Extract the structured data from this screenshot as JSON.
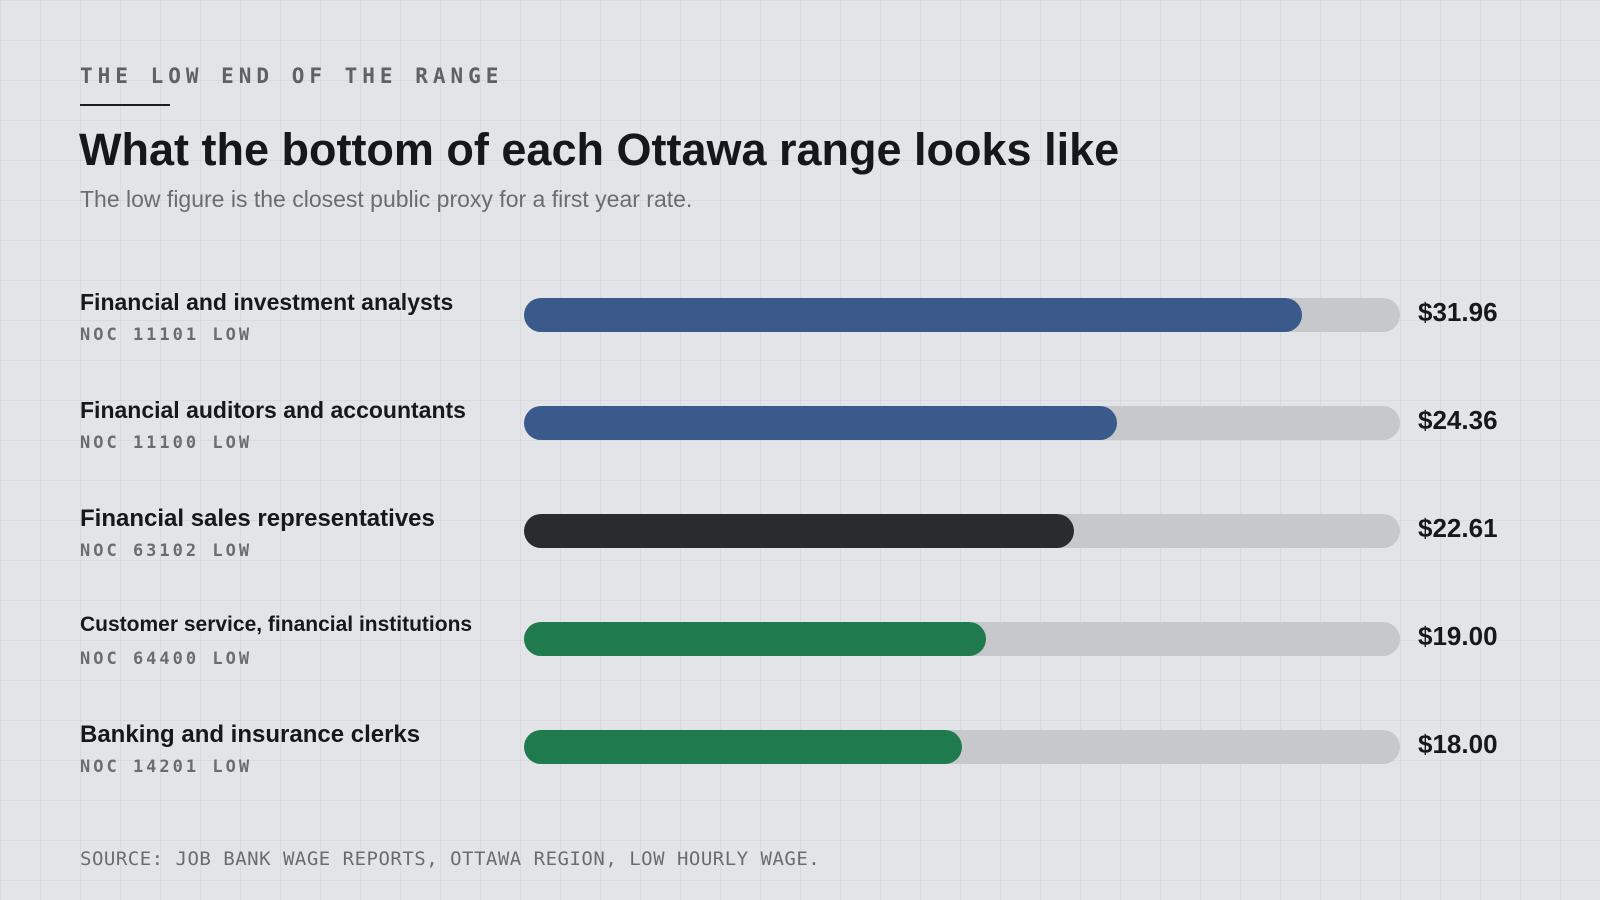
{
  "header": {
    "eyebrow": "THE LOW END OF THE RANGE",
    "title": "What the bottom of each Ottawa range looks like",
    "subtitle": "The low figure is the closest public proxy for a first year rate."
  },
  "chart_data": {
    "type": "bar",
    "orientation": "horizontal",
    "title": "What the bottom of each Ottawa range looks like",
    "subtitle": "The low figure is the closest public proxy for a first year rate.",
    "categories": [
      "Financial and investment analysts",
      "Financial auditors and accountants",
      "Financial sales representatives",
      "Customer service, financial institutions",
      "Banking and insurance clerks"
    ],
    "codes": [
      "NOC 11101 LOW",
      "NOC 11100 LOW",
      "NOC 63102 LOW",
      "NOC 64400 LOW",
      "NOC 14201 LOW"
    ],
    "values": [
      31.96,
      24.36,
      22.61,
      19.0,
      18.0
    ],
    "value_labels": [
      "$31.96",
      "$24.36",
      "$22.61",
      "$19.00",
      "$18.00"
    ],
    "colors": [
      "#3a5a8c",
      "#3a5a8c",
      "#2a2b2f",
      "#1f7a4d",
      "#1f7a4d"
    ],
    "track_color": "#c7c8cc",
    "xlim": [
      0,
      36
    ],
    "grid": false,
    "legend": "none"
  },
  "footer": {
    "source": "SOURCE: JOB BANK WAGE REPORTS, OTTAWA REGION, LOW HOURLY WAGE."
  }
}
